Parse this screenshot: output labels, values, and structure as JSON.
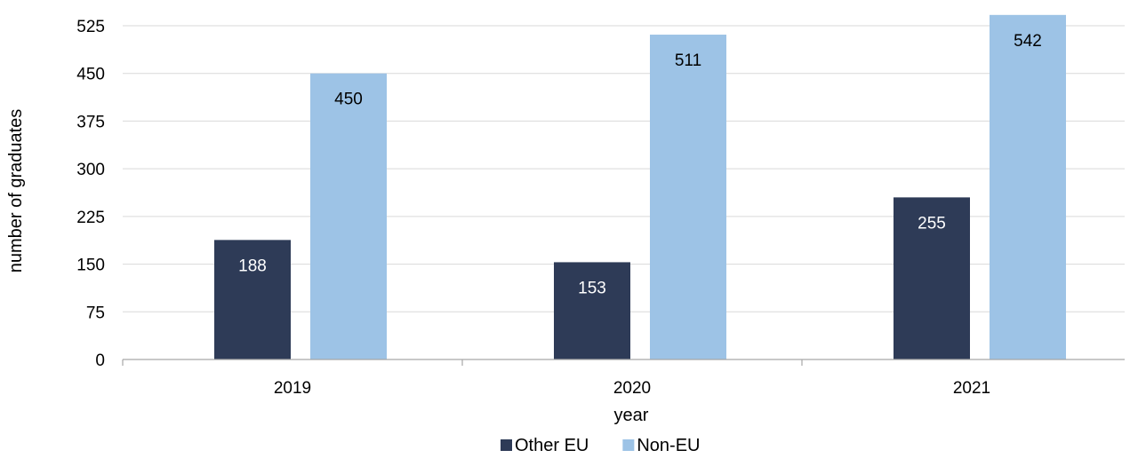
{
  "chart_data": {
    "type": "bar",
    "categories": [
      "2019",
      "2020",
      "2021"
    ],
    "series": [
      {
        "name": "Other EU",
        "values": [
          188,
          153,
          255
        ],
        "color": "#2e3b57",
        "label_color": "#ffffff"
      },
      {
        "name": "Non-EU",
        "values": [
          450,
          511,
          542
        ],
        "color": "#9dc3e6",
        "label_color": "#000000"
      }
    ],
    "title": "",
    "xlabel": "year",
    "ylabel": "number of graduates",
    "ylim": [
      0,
      525
    ],
    "yticks": [
      0,
      75,
      150,
      225,
      300,
      375,
      450,
      525
    ],
    "grid": true,
    "gridline_color": "#d9d9d9",
    "legend_position": "bottom"
  }
}
